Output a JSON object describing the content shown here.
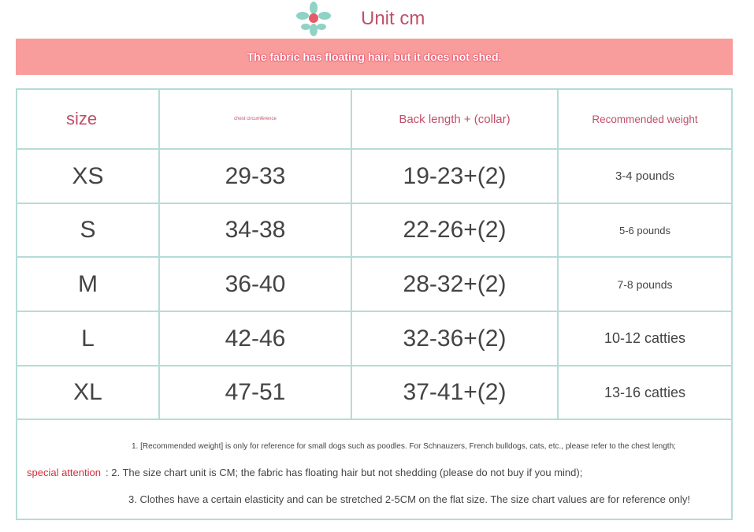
{
  "header": {
    "title": "Unit cm",
    "logo_icon": "flower-icon",
    "banner": "The fabric has floating hair, but it does not shed."
  },
  "colors": {
    "accent": "#c0506a",
    "banner": "#f99c9c",
    "border": "#b5dcd8"
  },
  "table": {
    "headers": [
      "size",
      "chest circumference",
      "Back length + (collar)",
      "Recommended weight"
    ],
    "rows": [
      [
        "XS",
        "29-33",
        "19-23+(2)",
        "3-4 pounds"
      ],
      [
        "S",
        "34-38",
        "22-26+(2)",
        "5-6 pounds"
      ],
      [
        "M",
        "36-40",
        "28-32+(2)",
        "7-8 pounds"
      ],
      [
        "L",
        "42-46",
        "32-36+(2)",
        "10-12 catties"
      ],
      [
        "XL",
        "47-51",
        "37-41+(2)",
        "13-16 catties"
      ]
    ]
  },
  "notes": {
    "label": "special attention",
    "line1": "1. [Recommended weight] is only for reference for small dogs such as poodles. For Schnauzers, French bulldogs, cats, etc., please refer to the chest length;",
    "line2": ": 2. The size chart unit is CM; the fabric has floating hair but not shedding (please do not buy if you mind);",
    "line3": "3. Clothes have a certain elasticity and can be stretched 2-5CM on the flat size. The size chart values are for reference only!"
  }
}
